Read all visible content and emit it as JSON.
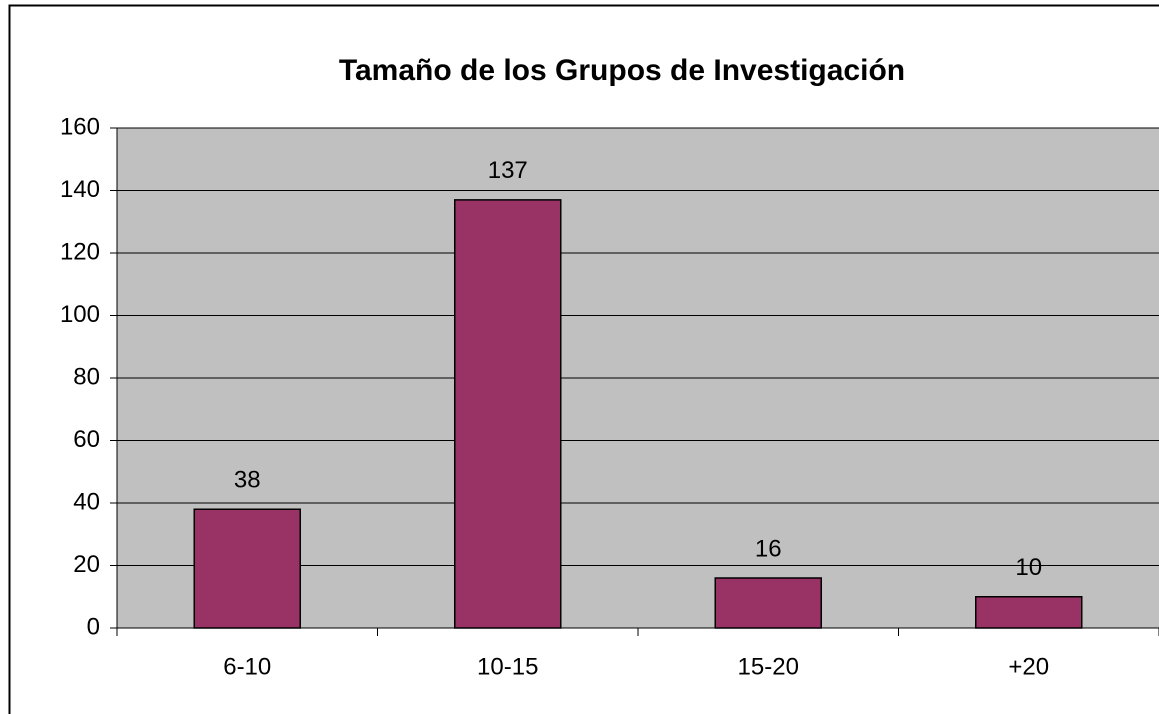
{
  "chart_data": {
    "type": "bar",
    "title": "Tamaño de los Grupos de Investigación",
    "categories": [
      "6-10",
      "10-15",
      "15-20",
      "+20"
    ],
    "values": [
      38,
      137,
      16,
      10
    ],
    "color": "#993366",
    "ylim": [
      0,
      160
    ],
    "yticks": [
      0,
      20,
      40,
      60,
      80,
      100,
      120,
      140,
      160
    ],
    "grid": true
  }
}
